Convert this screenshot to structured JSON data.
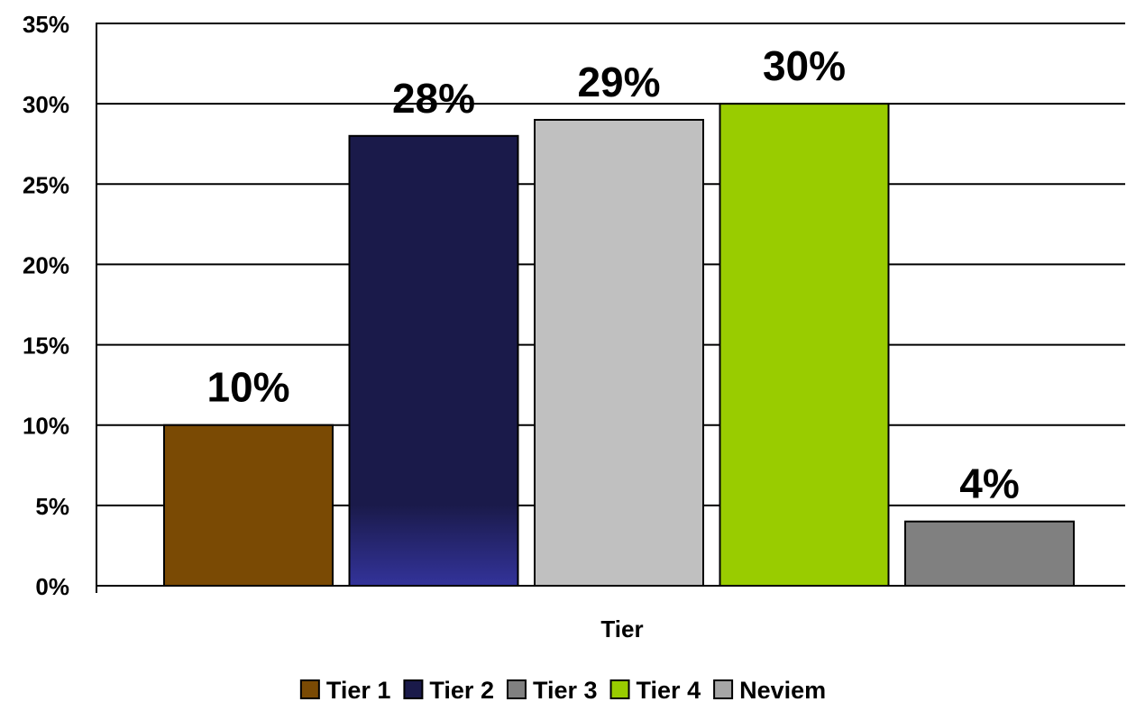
{
  "chart_data": {
    "type": "bar",
    "title": "",
    "xlabel": "Tier",
    "ylabel": "",
    "ylim": [
      0,
      35
    ],
    "y_tick_step": 5,
    "y_tick_format": "percent",
    "grid": true,
    "legend_position": "bottom",
    "categories": [
      "Tier 1",
      "Tier 2",
      "Tier 3",
      "Tier 4",
      "Neviem"
    ],
    "values": [
      10,
      28,
      29,
      30,
      4
    ],
    "data_labels": [
      "10%",
      "28%",
      "29%",
      "30%",
      "4%"
    ],
    "y_ticks": [
      "0%",
      "5%",
      "10%",
      "15%",
      "20%",
      "25%",
      "30%",
      "35%"
    ],
    "bar_colors": [
      "#7a4a04",
      "#1a1a4a",
      "#c0c0c0",
      "#99cc00",
      "#808080"
    ],
    "bar_gradient_bottom": [
      "",
      "#33339a",
      "",
      "",
      ""
    ],
    "legend": [
      {
        "label": "Tier 1",
        "color": "#7a4a04"
      },
      {
        "label": "Tier 2",
        "color": "#1a1a4a"
      },
      {
        "label": "Tier 3",
        "color": "#808080"
      },
      {
        "label": "Tier 4",
        "color": "#99cc00"
      },
      {
        "label": "Neviem",
        "color": "#a6a6a6"
      }
    ]
  }
}
